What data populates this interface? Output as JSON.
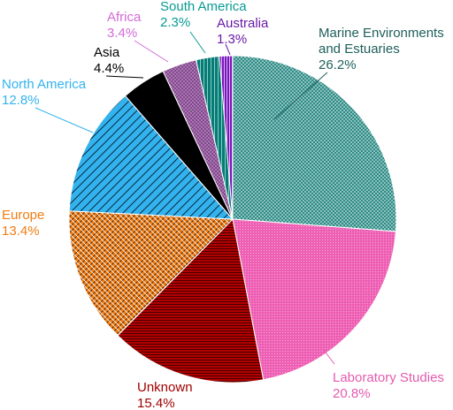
{
  "chart_data": {
    "type": "pie",
    "start_angle_deg": 0,
    "direction": "clockwise",
    "slices": [
      {
        "name_lines": [
          "Marine Environments",
          "and Estuaries"
        ],
        "value_label": "26.2%",
        "value": 26.2,
        "color": "#2e8b86",
        "label_color": "#1f5f5c"
      },
      {
        "name_lines": [
          "Laboratory Studies"
        ],
        "value_label": "20.8%",
        "value": 20.8,
        "color": "#ee5fb4",
        "label_color": "#e45bb0"
      },
      {
        "name_lines": [
          "Unknown"
        ],
        "value_label": "15.4%",
        "value": 15.4,
        "color": "#b00000",
        "label_color": "#a20000"
      },
      {
        "name_lines": [
          "Europe"
        ],
        "value_label": "13.4%",
        "value": 13.4,
        "color": "#f07d14",
        "label_color": "#f07d14"
      },
      {
        "name_lines": [
          "North America"
        ],
        "value_label": "12.8%",
        "value": 12.8,
        "color": "#33b3ee",
        "label_color": "#33b3ee"
      },
      {
        "name_lines": [
          "Asia"
        ],
        "value_label": "4.4%",
        "value": 4.4,
        "color": "#000000",
        "label_color": "#000000"
      },
      {
        "name_lines": [
          "Africa"
        ],
        "value_label": "3.4%",
        "value": 3.4,
        "color": "#7c3f86",
        "label_color": "#d36bd8"
      },
      {
        "name_lines": [
          "South America"
        ],
        "value_label": "2.3%",
        "value": 2.3,
        "color": "#0a7a74",
        "label_color": "#0a9a93"
      },
      {
        "name_lines": [
          "Australia"
        ],
        "value_label": "1.3%",
        "value": 1.3,
        "color": "#7a17b8",
        "label_color": "#6a1aa8"
      }
    ]
  }
}
